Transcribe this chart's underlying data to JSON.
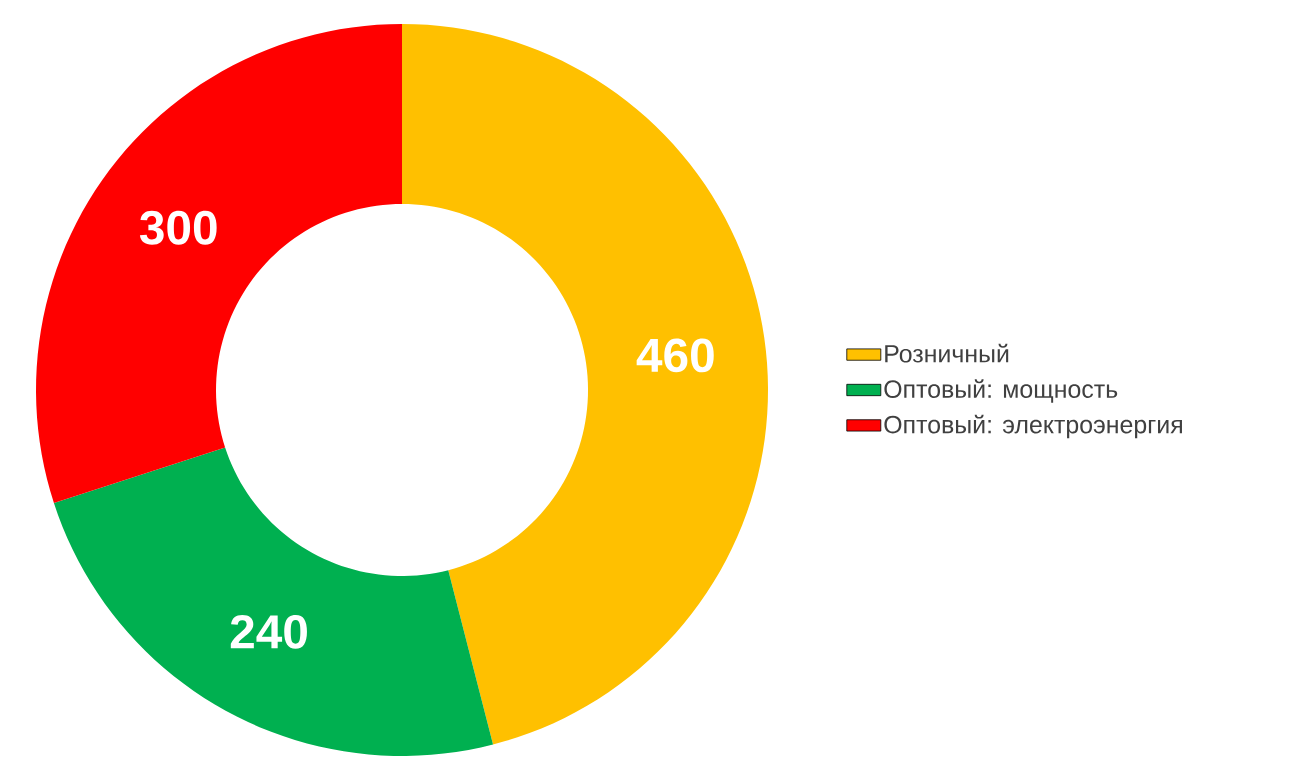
{
  "chart_data": {
    "type": "donut",
    "categories": [
      "Розничный",
      "Оптовый: мощность",
      "Оптовый: электроэнергия"
    ],
    "values": [
      460,
      240,
      300
    ],
    "colors": [
      "#ffc000",
      "#00b050",
      "#ff0000"
    ],
    "data_labels": true,
    "legend": "right"
  }
}
